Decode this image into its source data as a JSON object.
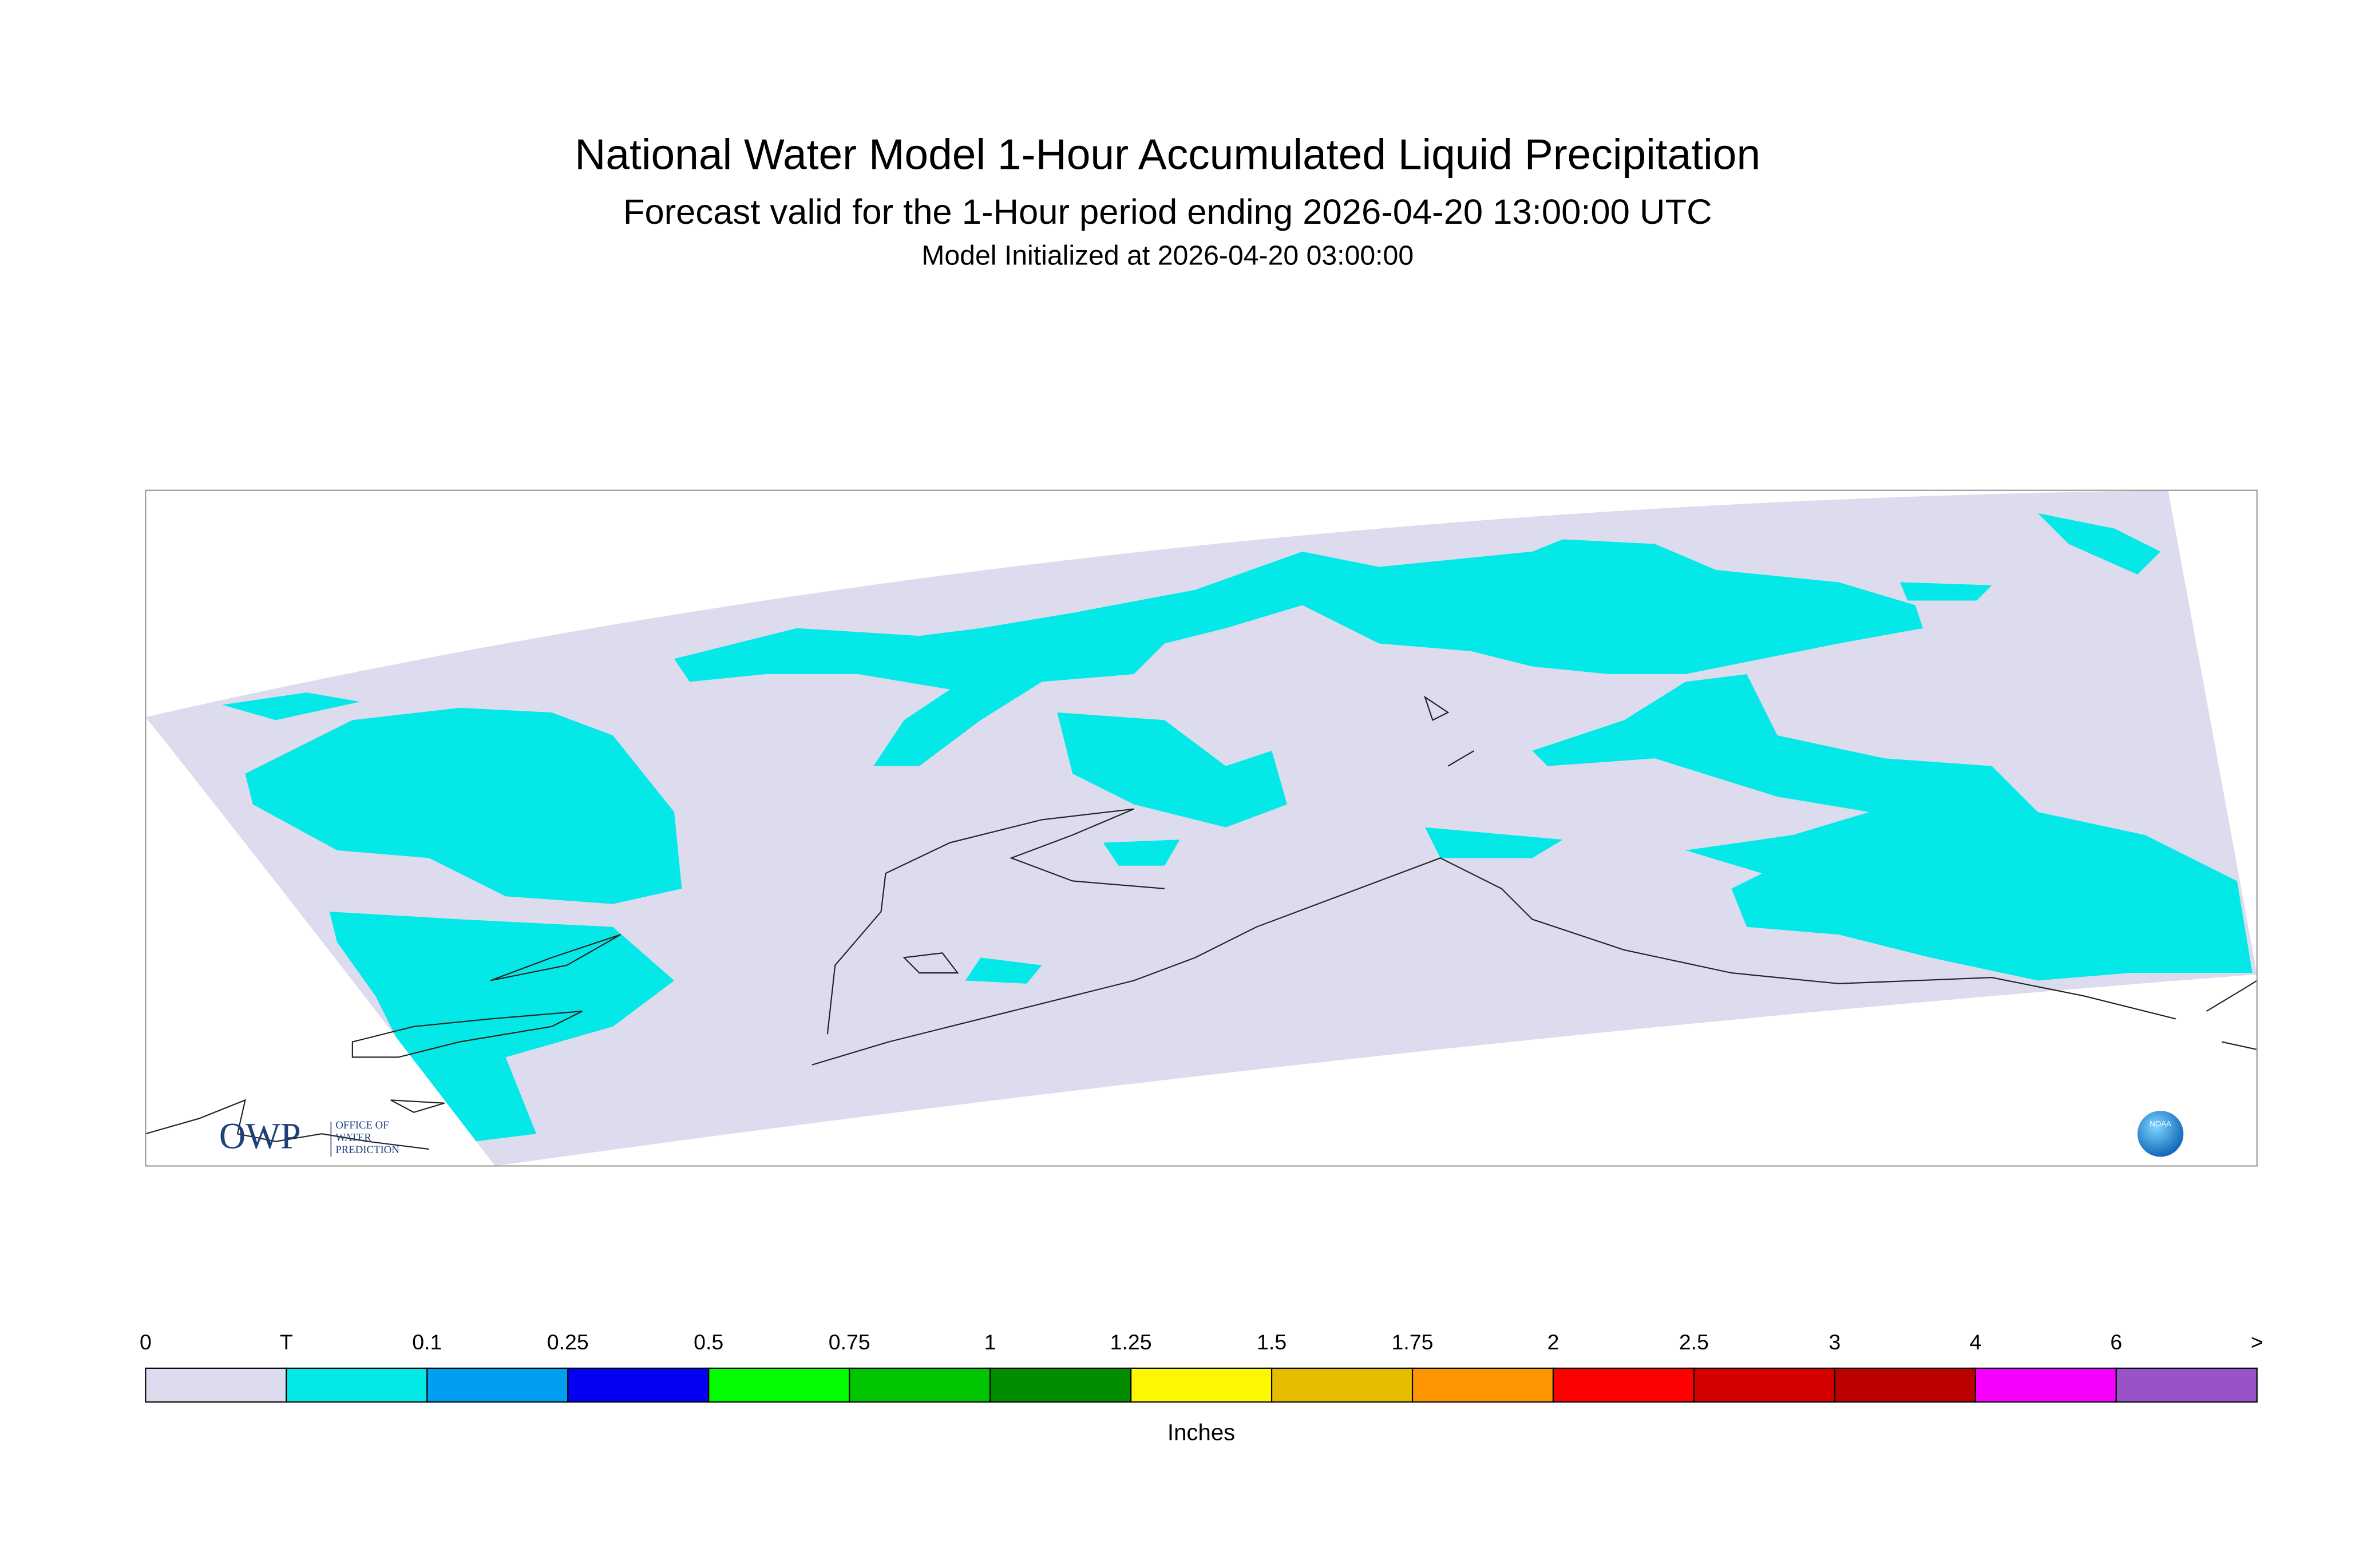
{
  "header": {
    "title": "National Water Model 1-Hour Accumulated Liquid Precipitation",
    "subtitle": "Forecast valid for the 1-Hour period ending 2026-04-20 13:00:00 UTC",
    "initialized": "Model Initialized at 2026-04-20 03:00:00"
  },
  "legend": {
    "labels": [
      "0",
      "T",
      "0.1",
      "0.25",
      "0.5",
      "0.75",
      "1",
      "1.25",
      "1.5",
      "1.75",
      "2",
      "2.5",
      "3",
      "4",
      "6",
      ">"
    ],
    "colors": [
      "#dcdcee",
      "#04e9e7",
      "#019ff4",
      "#0300f4",
      "#02fd02",
      "#01c501",
      "#008e00",
      "#fdf802",
      "#e5bc00",
      "#fd9500",
      "#fd0000",
      "#d40000",
      "#bc0000",
      "#f800fd",
      "#9854c6"
    ],
    "unit": "Inches"
  },
  "logos": {
    "owp": "OWP",
    "owp_lines": [
      "OFFICE OF",
      "WATER",
      "PREDICTION"
    ],
    "noaa": "NOAA"
  }
}
